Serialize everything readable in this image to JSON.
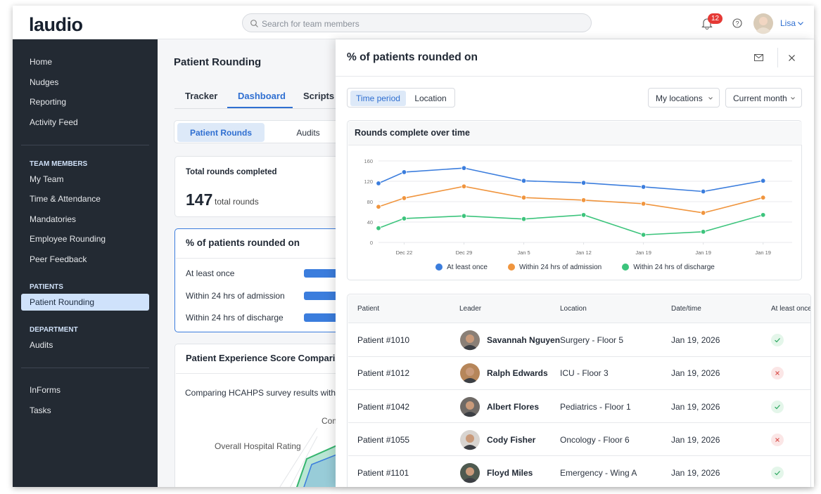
{
  "header": {
    "logo": "laudio",
    "search_placeholder": "Search for team members",
    "notifications": 12,
    "user": "Lisa"
  },
  "sidebar": {
    "main": [
      "Home",
      "Nudges",
      "Reporting",
      "Activity Feed"
    ],
    "sections": [
      {
        "title": "TEAM MEMBERS",
        "items": [
          "My Team",
          "Time & Attendance",
          "Mandatories",
          "Employee Rounding",
          "Peer Feedback"
        ]
      },
      {
        "title": "PATIENTS",
        "items": [
          "Patient Rounding"
        ],
        "active": 0
      },
      {
        "title": "DEPARTMENT",
        "items": [
          "Audits"
        ]
      }
    ],
    "footer": [
      "InForms",
      "Tasks"
    ]
  },
  "page": {
    "title": "Patient Rounding",
    "tabs": [
      "Tracker",
      "Dashboard",
      "Scripts"
    ],
    "active_tab": 1,
    "segments": [
      "Patient Rounds",
      "Audits"
    ],
    "active_segment": 0,
    "total_card": {
      "title": "Total rounds completed",
      "value": 147,
      "unit": "total rounds"
    },
    "percent_card": {
      "title": "% of patients rounded on",
      "rows": [
        "At least once",
        "Within 24 hrs of admission",
        "Within 24 hrs of discharge"
      ]
    },
    "experience_card": {
      "title": "Patient Experience Score Comparison",
      "subtitle": "Comparing HCAHPS survey results with pati",
      "radar_labels": [
        "Com",
        "Overall Hospital Rating"
      ]
    }
  },
  "panel": {
    "title": "% of patients rounded on",
    "toggle": [
      "Time period",
      "Location"
    ],
    "active_toggle": 0,
    "filters": [
      "My locations",
      "Current month"
    ],
    "table": {
      "columns": [
        "Patient",
        "Leader",
        "Location",
        "Date/time",
        "At least once"
      ],
      "rows": [
        [
          "Patient #1010",
          "Savannah Nguyen",
          "Surgery - Floor 5",
          "Jan 19, 2026",
          true
        ],
        [
          "Patient #1012",
          "Ralph Edwards",
          "ICU - Floor 3",
          "Jan 19, 2026",
          false
        ],
        [
          "Patient #1042",
          "Albert Flores",
          "Pediatrics - Floor 1",
          "Jan 19, 2026",
          true
        ],
        [
          "Patient #1055",
          "Cody Fisher",
          "Oncology - Floor 6",
          "Jan 19, 2026",
          false
        ],
        [
          "Patient #1101",
          "Floyd Miles",
          "Emergency - Wing A",
          "Jan 19, 2026",
          true
        ]
      ]
    }
  },
  "chart_data": {
    "type": "line",
    "title": "Rounds complete over time",
    "x": [
      -3,
      0,
      7,
      14,
      21,
      28,
      35,
      42
    ],
    "xlim": [
      -3,
      45.4
    ],
    "xticks": [
      {
        "value": 0,
        "label": "Dec 22"
      },
      {
        "value": 7,
        "label": "Dec 29"
      },
      {
        "value": 14,
        "label": "Jan 5"
      },
      {
        "value": 21,
        "label": "Jan 12"
      },
      {
        "value": 28,
        "label": "Jan 19"
      },
      {
        "value": 35,
        "label": "Jan 19"
      },
      {
        "value": 42,
        "label": "Jan 19"
      }
    ],
    "ylim": [
      0,
      160
    ],
    "yticks": [
      0,
      40,
      80,
      120,
      160
    ],
    "grid": true,
    "legend": "bottom",
    "series": [
      {
        "name": "At least once",
        "color": "#3b7ddd",
        "values": [
          116,
          138,
          146,
          121,
          117,
          109,
          100,
          121
        ]
      },
      {
        "name": "Within 24 hrs of admission",
        "color": "#f0953e",
        "values": [
          70,
          87,
          110,
          88,
          83,
          76,
          58,
          88
        ]
      },
      {
        "name": "Within 24 hrs of discharge",
        "color": "#3cc47c",
        "values": [
          28,
          47,
          52,
          46,
          54,
          15,
          21,
          54
        ]
      }
    ]
  }
}
